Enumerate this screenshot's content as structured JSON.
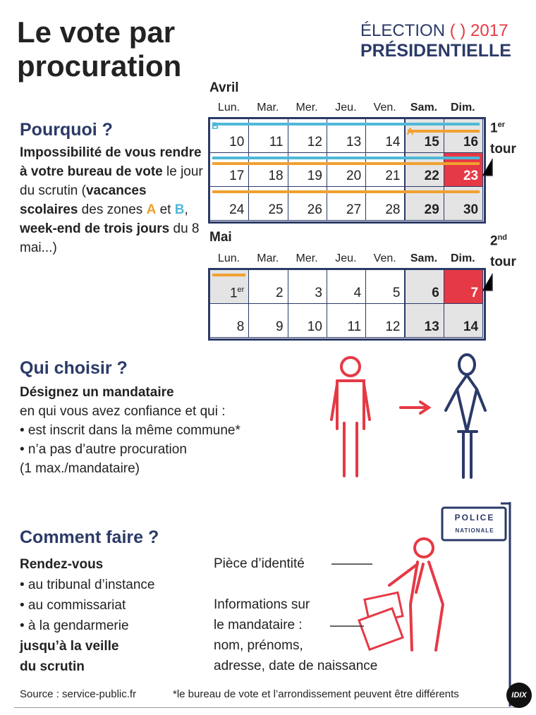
{
  "header": {
    "title_line1": "Le vote par",
    "title_line2": "procuration",
    "brand_election": "ÉLECTION",
    "brand_year": "2017",
    "brand_presidential": "PRÉSIDENTIELLE"
  },
  "calendar": {
    "weekdays": [
      "Lun.",
      "Mar.",
      "Mer.",
      "Jeu.",
      "Ven.",
      "Sam.",
      "Dim."
    ],
    "april": {
      "month": "Avril",
      "weeks": [
        [
          10,
          11,
          12,
          13,
          14,
          15,
          16
        ],
        [
          17,
          18,
          19,
          20,
          21,
          22,
          23
        ],
        [
          24,
          25,
          26,
          27,
          28,
          29,
          30
        ]
      ]
    },
    "may": {
      "month": "Mai",
      "weeks": [
        [
          1,
          2,
          3,
          4,
          5,
          6,
          7
        ],
        [
          8,
          9,
          10,
          11,
          12,
          13,
          14
        ]
      ],
      "first_sup": "er"
    },
    "zone_a": "A",
    "zone_b": "B",
    "first_round": {
      "ordinal": "1",
      "sup": "er",
      "word": "tour"
    },
    "second_round": {
      "ordinal": "2",
      "sup": "nd",
      "word": "tour"
    }
  },
  "why": {
    "heading": "Pourquoi ?",
    "segments": [
      {
        "text": "Impossibilité de vous rendre à votre bureau de vote",
        "bold": true
      },
      {
        "text": " le jour du scrutin (",
        "bold": false
      },
      {
        "text": "vacances scolaires",
        "bold": true
      },
      {
        "text": " des zones ",
        "bold": false
      },
      {
        "text": "A",
        "bold": true,
        "color": "#f0a030"
      },
      {
        "text": " et ",
        "bold": false
      },
      {
        "text": "B",
        "bold": true,
        "color": "#4fb8d8"
      },
      {
        "text": ", ",
        "bold": false
      },
      {
        "text": "week-end de trois jours",
        "bold": true
      },
      {
        "text": " du 8 mai...)",
        "bold": false
      }
    ]
  },
  "who": {
    "heading": "Qui choisir ?",
    "lead": "Désignez un mandataire",
    "lines": [
      "en qui vous avez confiance et qui :",
      "• est inscrit dans la même commune*",
      "• n’a pas d’autre procuration",
      "(1 max./mandataire)"
    ]
  },
  "how": {
    "heading": "Comment faire ?",
    "lead": "Rendez-vous",
    "lines": [
      "• au tribunal d’instance",
      "• au commissariat",
      "• à la gendarmerie"
    ],
    "deadline": [
      "jusqu’à la veille",
      "du scrutin"
    ],
    "id_label": "Pièce d’identité",
    "info_lines": [
      "Informations sur",
      "le mandataire :",
      "nom, prénoms,",
      "adresse, date de naissance"
    ],
    "sign_top": "POLICE",
    "sign_bottom": "NATIONALE"
  },
  "footer": {
    "source": "Source : service-public.fr",
    "note": "*le bureau de vote et l’arrondissement peuvent être différents",
    "logo": "IDIX"
  }
}
